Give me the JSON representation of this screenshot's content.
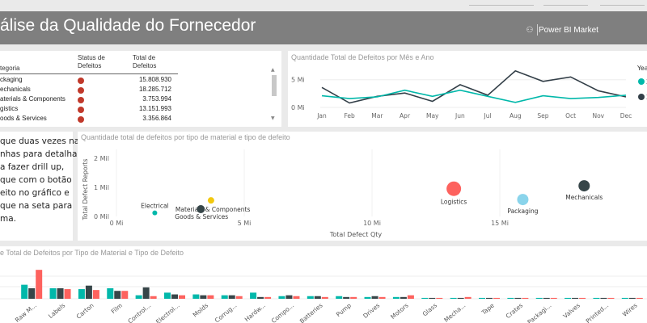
{
  "header": {
    "title": "álise da Qualidade do Fornecedor",
    "brand": "Power BI Market"
  },
  "supplier_table": {
    "col_category": "tegoria",
    "col_status": "Status de Defeitos",
    "col_total": "Total de Defeitos",
    "rows": [
      {
        "category": "ckaging",
        "total": "15.808.930"
      },
      {
        "category": "echanicals",
        "total": "18.285.712"
      },
      {
        "category": "aterials & Components",
        "total": "3.753.994"
      },
      {
        "category": "gistics",
        "total": "13.151.993"
      },
      {
        "category": "oods & Services",
        "total": "3.356.864"
      }
    ],
    "status_color": "#c0392b"
  },
  "monthly_chart": {
    "title": "Quantidade Total de Defeitos por Mês e Ano",
    "legend_title": "Yea",
    "legend_items": [
      "2",
      "2"
    ],
    "chart_data": {
      "type": "line",
      "categories": [
        "Jan",
        "Feb",
        "Mar",
        "Apr",
        "May",
        "Jun",
        "Jul",
        "Aug",
        "Sep",
        "Oct",
        "Nov",
        "Dec"
      ],
      "ytick_labels": [
        "0 Mi",
        "5 Mi"
      ],
      "ylim": [
        0,
        7
      ],
      "series": [
        {
          "color": "#333f48",
          "values": [
            3.6,
            0.8,
            2.0,
            2.6,
            1.1,
            4.1,
            2.2,
            6.6,
            4.7,
            5.5,
            3.0,
            1.9
          ]
        },
        {
          "color": "#01b8aa",
          "values": [
            2.1,
            1.6,
            1.9,
            3.1,
            2.0,
            3.1,
            2.0,
            0.9,
            2.1,
            1.6,
            1.8,
            2.2
          ]
        }
      ]
    }
  },
  "info_text": {
    "lines": [
      "que duas vezes nas",
      "nhas para detalhar.",
      "a fazer drill up,",
      "que com o botão",
      "eito no gráfico e",
      "que na seta para",
      "ma."
    ]
  },
  "scatter_chart": {
    "title": "Quantidade total de defeitos por tipo de material e tipo de defeito",
    "chart_data": {
      "type": "scatter",
      "xlabel": "Total Defect Qty",
      "ylabel": "Total Defect Reports",
      "xtick_labels": [
        "0 Mi",
        "5 Mi",
        "10 Mi",
        "15 Mi"
      ],
      "ytick_labels": [
        "0 Mil",
        "1 Mil",
        "2 Mil"
      ],
      "xlim": [
        0,
        20
      ],
      "ylim": [
        0,
        2.3
      ],
      "points": [
        {
          "label": "Electrical",
          "x": 1.5,
          "y": 0.12,
          "size": 3,
          "color": "#01b8aa"
        },
        {
          "label": "Materials & Components",
          "x": 3.7,
          "y": 0.55,
          "size": 4,
          "color": "#f2c80f"
        },
        {
          "label": "Goods & Services",
          "x": 3.3,
          "y": 0.25,
          "size": 5,
          "color": "#374649"
        },
        {
          "label": "Logistics",
          "x": 13.2,
          "y": 0.95,
          "size": 9,
          "color": "#fd625e"
        },
        {
          "label": "Packaging",
          "x": 15.9,
          "y": 0.58,
          "size": 7,
          "color": "#8ad4eb"
        },
        {
          "label": "Mechanicals",
          "x": 18.3,
          "y": 1.05,
          "size": 7,
          "color": "#374649"
        }
      ]
    }
  },
  "bar_chart": {
    "title": "e Total de Defeitos por Tipo de Material e Tipo de Defeito",
    "chart_data": {
      "type": "bar",
      "categories": [
        "Raw M...",
        "Labels",
        "Carton",
        "Film",
        "Control...",
        "Electrol...",
        "Molds",
        "Corrug...",
        "Hardw...",
        "Compo...",
        "Batteries",
        "Pump",
        "Drives",
        "Motors",
        "Glass",
        "Mecha...",
        "Tape",
        "Crates",
        "Packagi...",
        "Valves",
        "Printed...",
        "Wires"
      ],
      "ylim": [
        0,
        3.5
      ],
      "series": [
        {
          "color": "#01b8aa",
          "values": [
            1.6,
            1.2,
            1.1,
            1.2,
            0.4,
            0.7,
            0.5,
            0.4,
            0.7,
            0.3,
            0.3,
            0.3,
            0.2,
            0.2,
            0.1,
            0.1,
            0.1,
            0.1,
            0.1,
            0.1,
            0.1,
            0.1
          ]
        },
        {
          "color": "#374649",
          "values": [
            1.2,
            1.2,
            1.5,
            0.9,
            1.3,
            0.5,
            0.4,
            0.4,
            0.2,
            0.4,
            0.3,
            0.2,
            0.3,
            0.2,
            0.1,
            0.1,
            0.1,
            0.1,
            0.1,
            0.1,
            0.1,
            0.1
          ]
        },
        {
          "color": "#fd625e",
          "values": [
            3.3,
            1.1,
            1.0,
            0.9,
            0.3,
            0.4,
            0.4,
            0.3,
            0.2,
            0.3,
            0.2,
            0.2,
            0.2,
            0.4,
            0.1,
            0.2,
            0.1,
            0.1,
            0.1,
            0.1,
            0.1,
            0.1
          ]
        }
      ]
    }
  }
}
